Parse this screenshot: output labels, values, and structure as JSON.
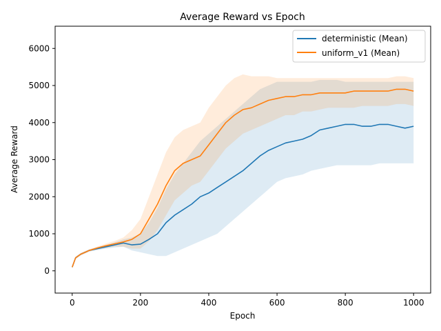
{
  "chart_data": {
    "type": "line",
    "title": "Average Reward vs Epoch",
    "xlabel": "Epoch",
    "ylabel": "Average Reward",
    "xlim": [
      -50,
      1050
    ],
    "ylim": [
      -600,
      6600
    ],
    "xticks": [
      0,
      200,
      400,
      600,
      800,
      1000
    ],
    "yticks": [
      0,
      1000,
      2000,
      3000,
      4000,
      5000,
      6000
    ],
    "grid": false,
    "legend_position": "top-right",
    "series": [
      {
        "name": "deterministic (Mean)",
        "color": "#1f77b4",
        "x": [
          0,
          10,
          25,
          50,
          75,
          100,
          125,
          150,
          175,
          200,
          225,
          250,
          275,
          300,
          325,
          350,
          375,
          400,
          425,
          450,
          475,
          500,
          525,
          550,
          575,
          600,
          625,
          650,
          675,
          700,
          725,
          750,
          775,
          800,
          825,
          850,
          875,
          900,
          925,
          950,
          975,
          1000
        ],
        "y": [
          100,
          350,
          450,
          550,
          600,
          650,
          700,
          750,
          700,
          720,
          850,
          1000,
          1300,
          1500,
          1650,
          1800,
          2000,
          2100,
          2250,
          2400,
          2550,
          2700,
          2900,
          3100,
          3250,
          3350,
          3450,
          3500,
          3550,
          3650,
          3800,
          3850,
          3900,
          3950,
          3950,
          3900,
          3900,
          3950,
          3950,
          3900,
          3850,
          3900
        ],
        "lower": [
          60,
          320,
          420,
          520,
          560,
          600,
          630,
          650,
          550,
          500,
          450,
          400,
          400,
          500,
          600,
          700,
          800,
          900,
          1000,
          1200,
          1400,
          1600,
          1800,
          2000,
          2200,
          2400,
          2500,
          2550,
          2600,
          2700,
          2750,
          2800,
          2850,
          2850,
          2850,
          2850,
          2850,
          2900,
          2900,
          2900,
          2900,
          2900
        ],
        "upper": [
          140,
          380,
          480,
          580,
          640,
          700,
          770,
          850,
          900,
          1000,
          1300,
          1700,
          2200,
          2600,
          2900,
          3200,
          3500,
          3700,
          3900,
          4100,
          4300,
          4500,
          4700,
          4900,
          5000,
          5100,
          5100,
          5100,
          5100,
          5100,
          5150,
          5150,
          5150,
          5100,
          5100,
          5100,
          5100,
          5100,
          5100,
          5100,
          5100,
          5100
        ]
      },
      {
        "name": "uniform_v1 (Mean)",
        "color": "#ff7f0e",
        "x": [
          0,
          10,
          25,
          50,
          75,
          100,
          125,
          150,
          175,
          200,
          225,
          250,
          275,
          300,
          325,
          350,
          375,
          400,
          425,
          450,
          475,
          500,
          525,
          550,
          575,
          600,
          625,
          650,
          675,
          700,
          725,
          750,
          775,
          800,
          825,
          850,
          875,
          900,
          925,
          950,
          975,
          1000
        ],
        "y": [
          100,
          350,
          450,
          550,
          620,
          680,
          730,
          780,
          850,
          1000,
          1400,
          1800,
          2300,
          2700,
          2900,
          3000,
          3100,
          3400,
          3700,
          4000,
          4200,
          4350,
          4400,
          4500,
          4600,
          4650,
          4700,
          4700,
          4750,
          4750,
          4800,
          4800,
          4800,
          4800,
          4850,
          4850,
          4850,
          4850,
          4850,
          4900,
          4900,
          4850
        ],
        "lower": [
          60,
          320,
          420,
          520,
          580,
          620,
          650,
          650,
          600,
          600,
          800,
          1100,
          1500,
          1900,
          2100,
          2300,
          2400,
          2700,
          3000,
          3300,
          3500,
          3700,
          3800,
          3900,
          4000,
          4100,
          4200,
          4200,
          4300,
          4300,
          4350,
          4400,
          4400,
          4400,
          4400,
          4450,
          4450,
          4450,
          4450,
          4500,
          4500,
          4450
        ],
        "upper": [
          140,
          380,
          480,
          580,
          660,
          740,
          810,
          900,
          1100,
          1400,
          2000,
          2600,
          3200,
          3600,
          3800,
          3900,
          4000,
          4400,
          4700,
          5000,
          5200,
          5300,
          5250,
          5250,
          5250,
          5200,
          5200,
          5200,
          5200,
          5200,
          5200,
          5200,
          5200,
          5200,
          5200,
          5200,
          5200,
          5200,
          5200,
          5250,
          5250,
          5200
        ]
      }
    ]
  }
}
